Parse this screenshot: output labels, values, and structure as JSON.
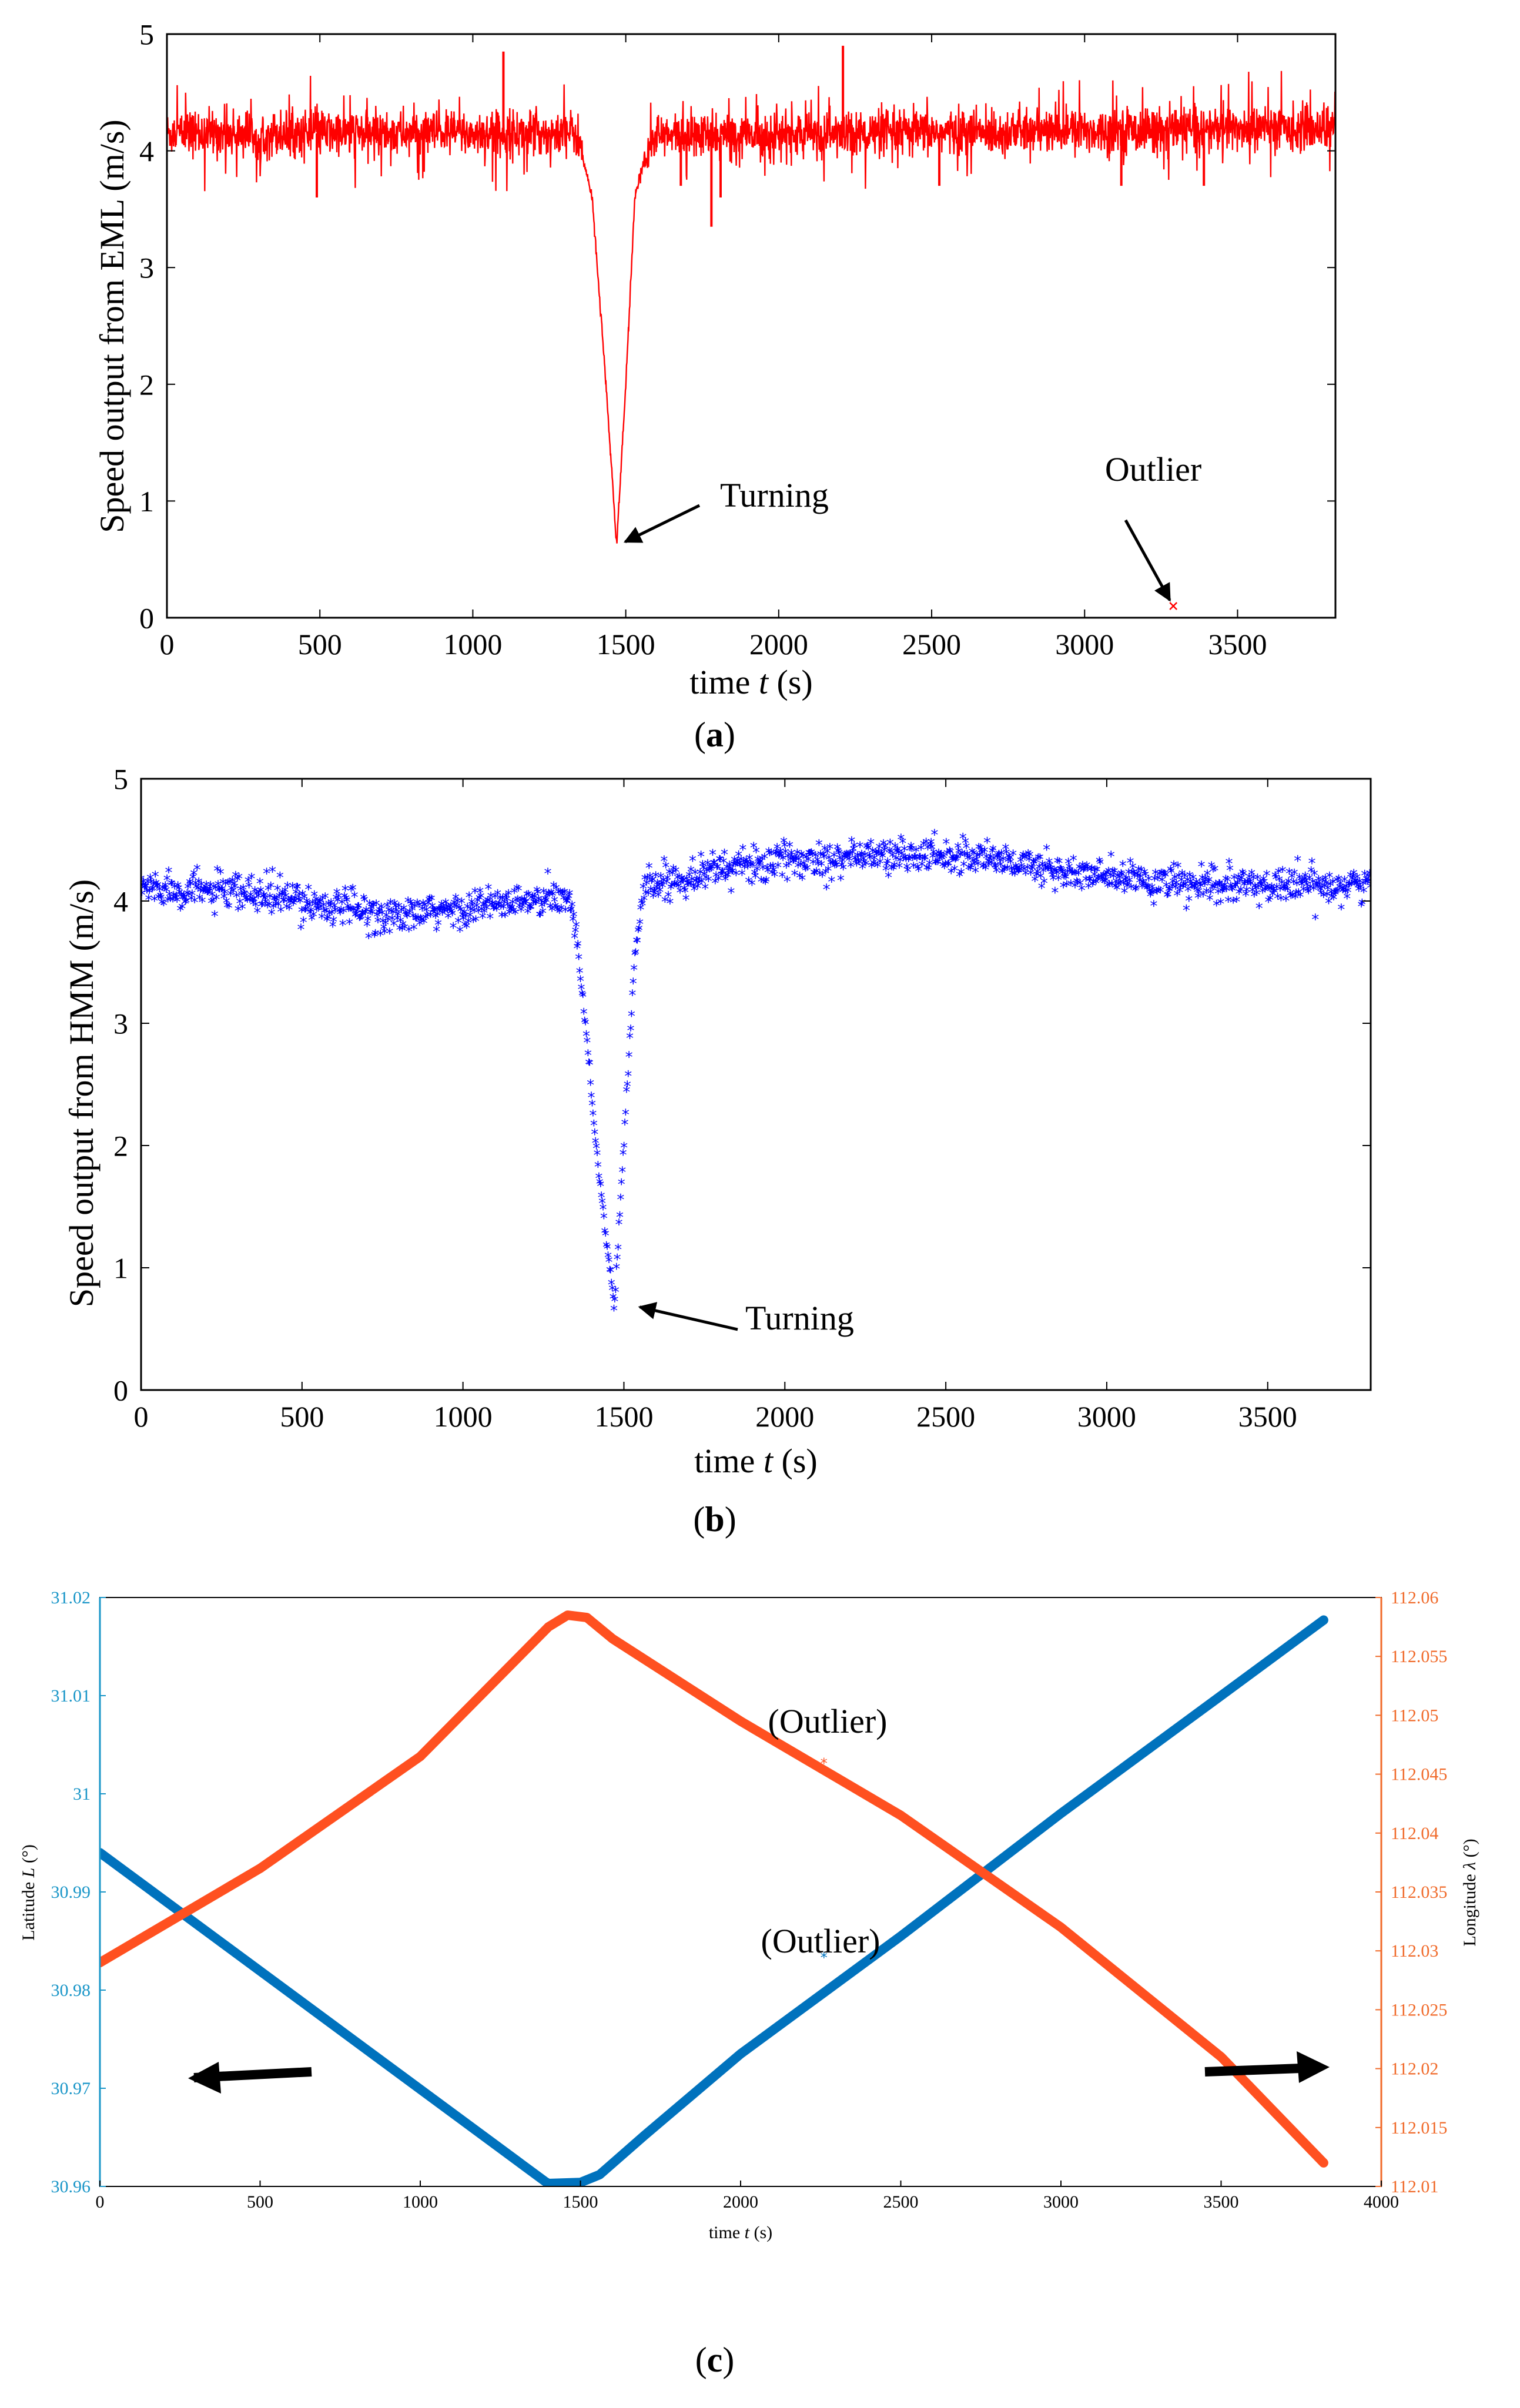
{
  "chart_data": [
    {
      "panel": "a",
      "type": "line",
      "caption_letter": "a",
      "xlabel": "time t (s)",
      "xlabel_pre": "time ",
      "xlabel_var": "t",
      "xlabel_post": " (s)",
      "ylabel": "Speed output from EML (m/s)",
      "xlim": [
        0,
        3820
      ],
      "ylim": [
        0,
        5
      ],
      "xticks": [
        0,
        500,
        1000,
        1500,
        2000,
        2500,
        3000,
        3500
      ],
      "yticks": [
        0,
        1,
        2,
        3,
        4,
        5
      ],
      "series": [
        {
          "name": "EML speed",
          "color": "#ff0000",
          "profile": [
            [
              0,
              4.15
            ],
            [
              1340,
              4.15
            ],
            [
              1390,
              3.6
            ],
            [
              1430,
              2.2
            ],
            [
              1470,
              0.62
            ],
            [
              1500,
              2.0
            ],
            [
              1530,
              3.6
            ],
            [
              1580,
              4.12
            ],
            [
              3820,
              4.2
            ]
          ],
          "noise": 0.18,
          "spikes": [
            [
              1100,
              4.85
            ],
            [
              2210,
              4.9
            ],
            [
              1780,
              3.35
            ],
            [
              1810,
              3.6
            ],
            [
              490,
              3.6
            ],
            [
              2525,
              3.7
            ],
            [
              3120,
              3.7
            ],
            [
              3390,
              3.7
            ],
            [
              1680,
              3.7
            ]
          ]
        }
      ],
      "outlier": {
        "x": 3290,
        "y": 0.1,
        "color": "#ff0000"
      },
      "annotations": [
        {
          "text": "Turning",
          "x": 1475,
          "y": 0.62
        },
        {
          "text": "Outlier",
          "x": 3290,
          "y": 0.1
        }
      ]
    },
    {
      "panel": "b",
      "type": "scatter",
      "caption_letter": "b",
      "xlabel": "time t (s)",
      "xlabel_pre": "time ",
      "xlabel_var": "t",
      "xlabel_post": " (s)",
      "ylabel": "Speed output from HMM (m/s)",
      "xlim": [
        0,
        3820
      ],
      "ylim": [
        0,
        5
      ],
      "xticks": [
        0,
        500,
        1000,
        1500,
        2000,
        2500,
        3000,
        3500
      ],
      "yticks": [
        0,
        1,
        2,
        3,
        4,
        5
      ],
      "series": [
        {
          "name": "HMM speed",
          "color": "#0000ff",
          "marker": "*",
          "profile": [
            [
              0,
              4.1
            ],
            [
              400,
              4.02
            ],
            [
              800,
              3.85
            ],
            [
              1100,
              3.95
            ],
            [
              1340,
              4.0
            ],
            [
              1380,
              3.0
            ],
            [
              1420,
              1.8
            ],
            [
              1470,
              0.65
            ],
            [
              1500,
              2.0
            ],
            [
              1530,
              3.4
            ],
            [
              1560,
              4.1
            ],
            [
              1800,
              4.25
            ],
            [
              2200,
              4.35
            ],
            [
              2600,
              4.35
            ],
            [
              2900,
              4.2
            ],
            [
              3300,
              4.1
            ],
            [
              3820,
              4.12
            ]
          ],
          "noise": 0.12
        }
      ],
      "annotations": [
        {
          "text": "Turning",
          "x": 1480,
          "y": 0.65
        }
      ]
    },
    {
      "panel": "c",
      "type": "line",
      "caption_letter": "c",
      "xlabel": "time t (s)",
      "xlabel_pre": "time ",
      "xlabel_var": "t",
      "xlabel_post": " (s)",
      "ylabel_left": "Latitude L (°)",
      "ylabel_left_pre": "Latitude ",
      "ylabel_left_var": "L",
      "ylabel_left_post": " (°)",
      "ylabel_right": "Longitude λ (°)",
      "ylabel_right_pre": "Longitude ",
      "ylabel_right_var": "λ",
      "ylabel_right_post": " (°)",
      "xlim": [
        0,
        4000
      ],
      "ylim_left": [
        30.96,
        31.02
      ],
      "ylim_right": [
        112.01,
        112.06
      ],
      "xticks": [
        0,
        500,
        1000,
        1500,
        2000,
        2500,
        3000,
        3500,
        4000
      ],
      "yticks_left": [
        "30.96",
        "30.97",
        "30.98",
        "30.99",
        "31",
        "31.01",
        "31.02"
      ],
      "yticks_right": [
        "112.01",
        "112.015",
        "112.02",
        "112.025",
        "112.03",
        "112.035",
        "112.04",
        "112.045",
        "112.05",
        "112.055",
        "112.06"
      ],
      "series": [
        {
          "name": "Latitude",
          "axis": "left",
          "color": "#0072bd",
          "points": [
            [
              0,
              30.994
            ],
            [
              1390,
              30.9605
            ],
            [
              1400,
              30.9603
            ],
            [
              1500,
              30.9604
            ],
            [
              1560,
              30.9612
            ],
            [
              1700,
              30.9652
            ],
            [
              2000,
              30.9735
            ],
            [
              2500,
              30.9855
            ],
            [
              3000,
              30.998
            ],
            [
              3500,
              31.01
            ],
            [
              3820,
              31.0177
            ]
          ]
        },
        {
          "name": "Longitude",
          "axis": "right",
          "color": "#ff5020",
          "points": [
            [
              0,
              112.029
            ],
            [
              500,
              112.037
            ],
            [
              1000,
              112.0465
            ],
            [
              1400,
              112.0575
            ],
            [
              1460,
              112.0585
            ],
            [
              1520,
              112.0583
            ],
            [
              1600,
              112.0565
            ],
            [
              2000,
              112.0495
            ],
            [
              2500,
              112.0415
            ],
            [
              3000,
              112.032
            ],
            [
              3500,
              112.021
            ],
            [
              3820,
              112.012
            ]
          ]
        }
      ],
      "outliers": [
        {
          "axis": "right",
          "x": 2260,
          "y": 112.046,
          "color": "#ff5020"
        },
        {
          "axis": "left",
          "x": 2260,
          "y": 30.9834,
          "color": "#0072bd"
        }
      ],
      "annotations": [
        {
          "text": "(Outlier)",
          "x": 2260,
          "y": 112.046,
          "axis": "right"
        },
        {
          "text": "(Outlier)",
          "x": 2260,
          "y": 30.9834,
          "axis": "left"
        }
      ],
      "arrows": [
        {
          "direction": "left",
          "meaning": "left axis"
        },
        {
          "direction": "right",
          "meaning": "right axis"
        }
      ]
    }
  ],
  "colors": {
    "eml": "#ff0000",
    "hmm": "#0000ff",
    "latitude": "#0072bd",
    "longitude": "#ff5020",
    "left_axis_text": "#1a96c8",
    "right_axis_text": "#f06a2a"
  }
}
